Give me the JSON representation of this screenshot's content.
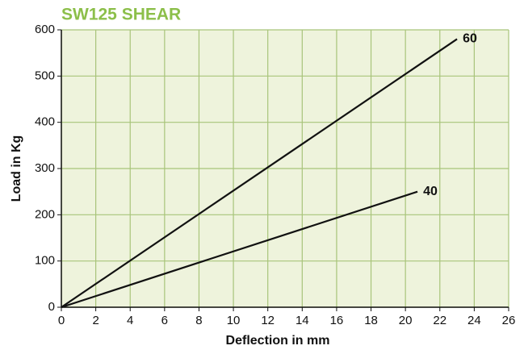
{
  "chart_data": {
    "type": "line",
    "title": "SW125 SHEAR",
    "x_label": "Deflection in mm",
    "y_label": "Load in Kg",
    "series": [
      {
        "name": "60",
        "color": "#111111",
        "x": [
          0,
          23
        ],
        "values": [
          0,
          580
        ]
      },
      {
        "name": "40",
        "color": "#111111",
        "x": [
          0,
          20.7
        ],
        "values": [
          0,
          250
        ]
      }
    ],
    "xlim": [
      0,
      26
    ],
    "xticks": [
      0,
      2,
      4,
      6,
      8,
      10,
      12,
      14,
      16,
      18,
      20,
      22,
      24,
      26
    ],
    "ylim": [
      0,
      600
    ],
    "yticks": [
      0,
      100,
      200,
      300,
      400,
      500,
      600
    ],
    "grid": true,
    "grid_color": "#a8c47a",
    "plot_background": "#eef3dc",
    "title_color": "#8cbf4a"
  }
}
